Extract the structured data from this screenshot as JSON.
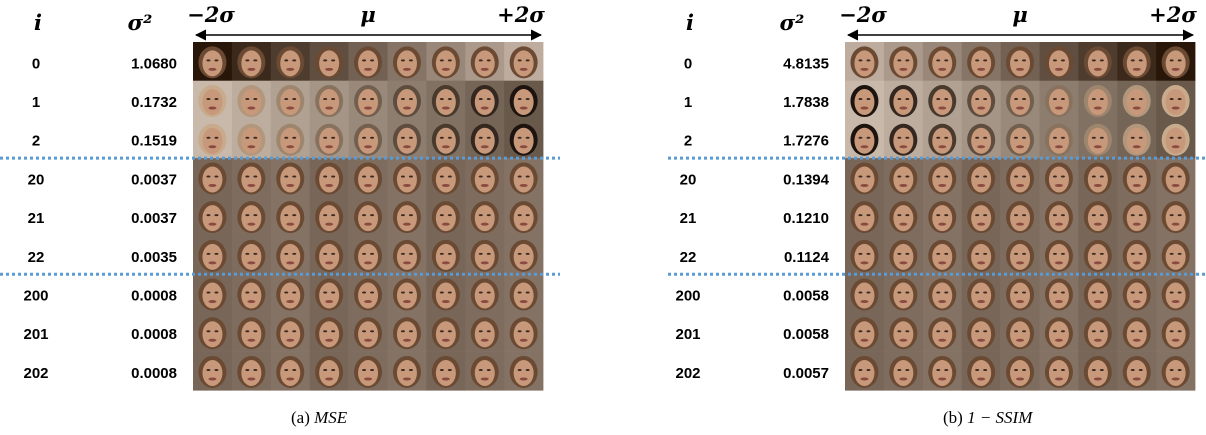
{
  "panels": [
    {
      "headers": {
        "i": "i",
        "variance": "σ²",
        "left": "−2σ",
        "center": "μ",
        "right": "+2σ"
      },
      "rows": [
        {
          "i": "0",
          "variance": "1.0680"
        },
        {
          "i": "1",
          "variance": "0.1732"
        },
        {
          "i": "2",
          "variance": "0.1519"
        },
        {
          "i": "20",
          "variance": "0.0037"
        },
        {
          "i": "21",
          "variance": "0.0037"
        },
        {
          "i": "22",
          "variance": "0.0035"
        },
        {
          "i": "200",
          "variance": "0.0008"
        },
        {
          "i": "201",
          "variance": "0.0008"
        },
        {
          "i": "202",
          "variance": "0.0008"
        }
      ],
      "caption_label": "(a)",
      "caption_text": "MSE"
    },
    {
      "headers": {
        "i": "i",
        "variance": "σ²",
        "left": "−2σ",
        "center": "μ",
        "right": "+2σ"
      },
      "rows": [
        {
          "i": "0",
          "variance": "4.8135"
        },
        {
          "i": "1",
          "variance": "1.7838"
        },
        {
          "i": "2",
          "variance": "1.7276"
        },
        {
          "i": "20",
          "variance": "0.1394"
        },
        {
          "i": "21",
          "variance": "0.1210"
        },
        {
          "i": "22",
          "variance": "0.1124"
        },
        {
          "i": "200",
          "variance": "0.0058"
        },
        {
          "i": "201",
          "variance": "0.0058"
        },
        {
          "i": "202",
          "variance": "0.0057"
        }
      ],
      "caption_label": "(b)",
      "caption_text": "1 − SSIM"
    }
  ]
}
